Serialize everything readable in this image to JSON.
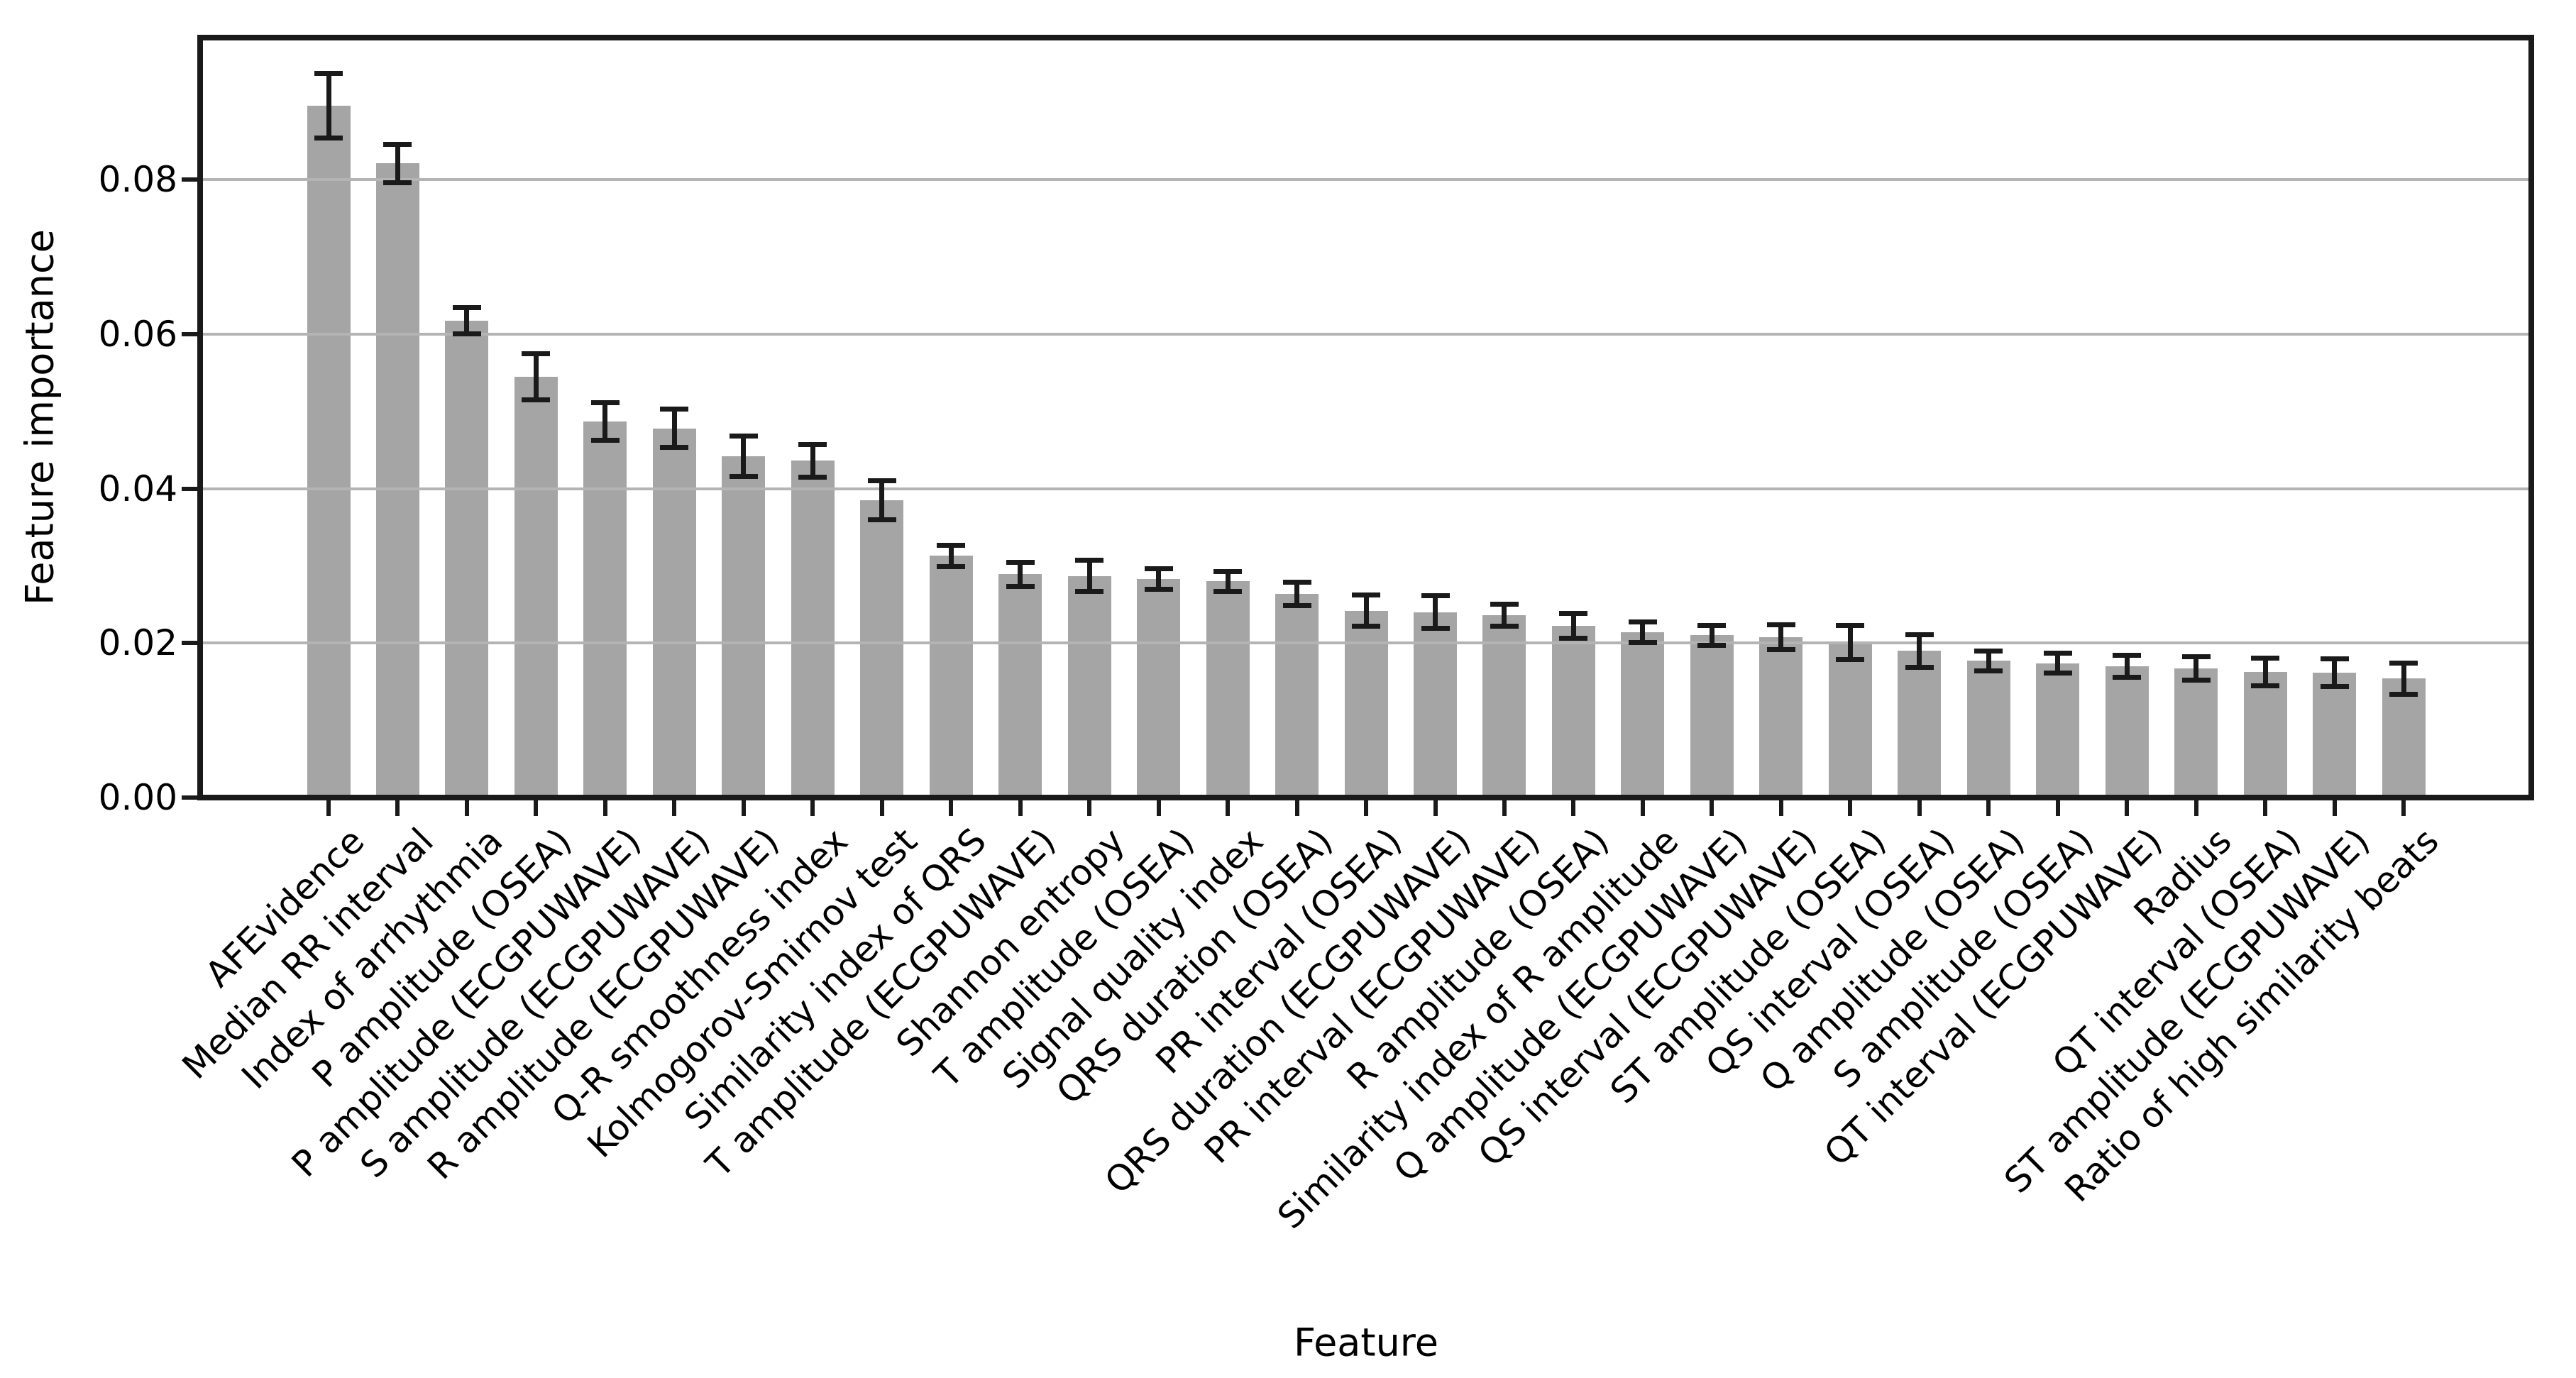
{
  "chart_data": {
    "type": "bar",
    "title": "",
    "xlabel": "Feature",
    "ylabel": "Feature importance",
    "ylim": [
      0,
      0.0984
    ],
    "yticks": [
      0.0,
      0.02,
      0.04,
      0.06,
      0.08
    ],
    "ytick_labels": [
      "0.00",
      "0.02",
      "0.04",
      "0.06",
      "0.08"
    ],
    "grid": true,
    "legend": false,
    "bar_color": "#a5a5a5",
    "error_bar_color": "#1a1a1a",
    "gridline_color": "#b4b4b4",
    "categories": [
      "AFEvidence",
      "Median RR interval",
      "Index of arrhythmia",
      "P amplitude (OSEA)",
      "P amplitude (ECGPUWAVE)",
      "S amplitude (ECGPUWAVE)",
      "R amplitude (ECGPUWAVE)",
      "Q-R smoothness index",
      "Kolmogorov-Smirnov test",
      "Similarity index of QRS",
      "T amplitude (ECGPUWAVE)",
      "Shannon entropy",
      "T amplitude (OSEA)",
      "Signal quality index",
      "QRS duration (OSEA)",
      "PR interval (OSEA)",
      "QRS duration (ECGPUWAVE)",
      "PR interval (ECGPUWAVE)",
      "R amplitude (OSEA)",
      "Similarity index of R amplitude",
      "Q amplitude (ECGPUWAVE)",
      "QS interval (ECGPUWAVE)",
      "ST amplitude (OSEA)",
      "QS interval (OSEA)",
      "Q amplitude (OSEA)",
      "S amplitude (OSEA)",
      "QT interval (ECGPUWAVE)",
      "Radius",
      "QT interval (OSEA)",
      "ST amplitude (ECGPUWAVE)",
      "Ratio of high similarity beats"
    ],
    "values": [
      0.0896,
      0.0821,
      0.0617,
      0.0545,
      0.0487,
      0.0478,
      0.0442,
      0.0436,
      0.0385,
      0.0313,
      0.0289,
      0.0287,
      0.0283,
      0.028,
      0.0264,
      0.0242,
      0.024,
      0.0236,
      0.0222,
      0.0214,
      0.021,
      0.0208,
      0.0201,
      0.019,
      0.0177,
      0.0174,
      0.017,
      0.0167,
      0.0163,
      0.0162,
      0.0154
    ],
    "errors": [
      0.0042,
      0.0025,
      0.0017,
      0.003,
      0.0024,
      0.0025,
      0.0026,
      0.0021,
      0.0025,
      0.0014,
      0.0016,
      0.002,
      0.0013,
      0.0013,
      0.0015,
      0.002,
      0.0021,
      0.0014,
      0.0016,
      0.0013,
      0.0013,
      0.0016,
      0.0022,
      0.0021,
      0.0013,
      0.0013,
      0.0014,
      0.0015,
      0.0018,
      0.0018,
      0.002
    ]
  }
}
